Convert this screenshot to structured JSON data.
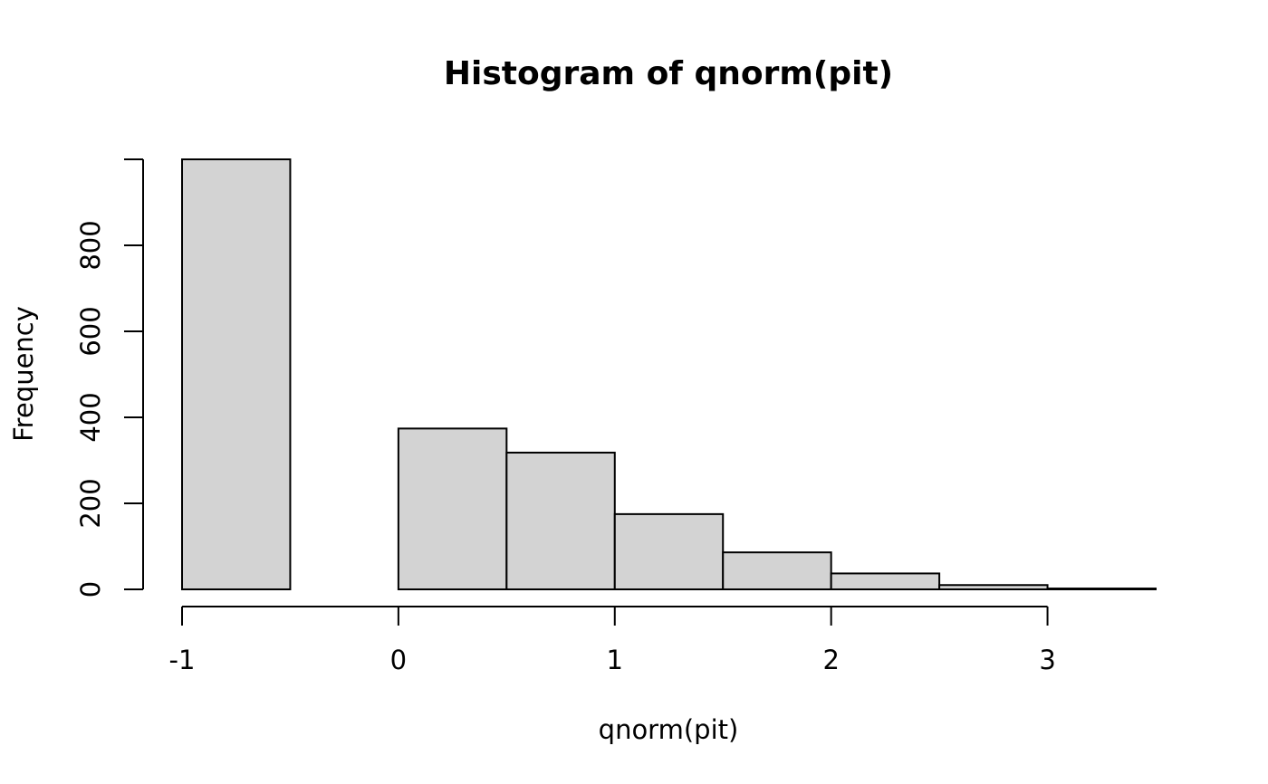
{
  "chart_data": {
    "type": "bar",
    "title": "Histogram of qnorm(pit)",
    "xlabel": "qnorm(pit)",
    "ylabel": "Frequency",
    "bins": [
      {
        "start": -1.0,
        "end": -0.5,
        "count": 1000
      },
      {
        "start": -0.5,
        "end": 0.0,
        "count": 0
      },
      {
        "start": 0.0,
        "end": 0.5,
        "count": 374
      },
      {
        "start": 0.5,
        "end": 1.0,
        "count": 318
      },
      {
        "start": 1.0,
        "end": 1.5,
        "count": 175
      },
      {
        "start": 1.5,
        "end": 2.0,
        "count": 86
      },
      {
        "start": 2.0,
        "end": 2.5,
        "count": 37
      },
      {
        "start": 2.5,
        "end": 3.0,
        "count": 10
      },
      {
        "start": 3.0,
        "end": 3.5,
        "count": 2
      }
    ],
    "xlim": [
      -1,
      3.5
    ],
    "ylim": [
      0,
      1000
    ],
    "x_ticks": [
      -1,
      0,
      1,
      2,
      3
    ],
    "x_tick_labels": [
      "-1",
      "0",
      "1",
      "2",
      "3"
    ],
    "y_ticks": [
      0,
      200,
      400,
      600,
      800,
      1000
    ],
    "y_tick_labels": [
      "0",
      "200",
      "400",
      "600",
      "800",
      ""
    ],
    "bar_fill": "#d3d3d3",
    "bar_stroke": "#000000",
    "grid": false,
    "legend": "none"
  }
}
